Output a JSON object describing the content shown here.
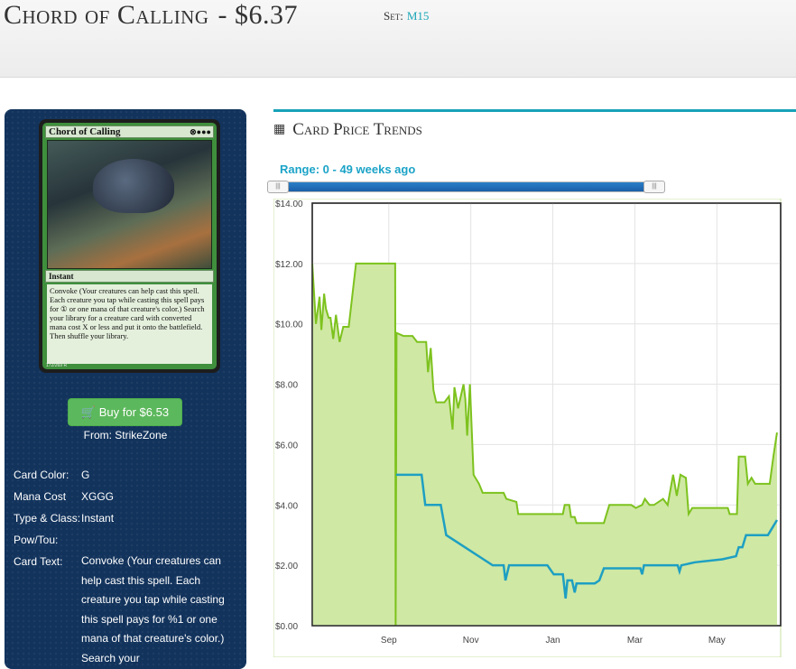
{
  "header": {
    "card_name": "Chord of Calling",
    "price": "- $6.37",
    "set_label": "Set:",
    "set_code": "M15"
  },
  "card": {
    "name": "Chord of Calling",
    "mana_symbols": "⊗●●●",
    "type": "Instant",
    "rules_text": "Convoke (Your creatures can help cast this spell. Each creature you tap while casting this spell pays for ① or one mana of that creature's color.) Search your library for a creature card with converted mana cost X or less and put it onto the battlefield. Then shuffle your library.",
    "footer": "172/269 R"
  },
  "buy": {
    "label": "Buy for $6.53",
    "from": "From: StrikeZone",
    "icon": "shopping-cart-icon"
  },
  "info": [
    {
      "key": "Card Color:",
      "value": "G"
    },
    {
      "key": "Mana Cost",
      "value": "XGGG"
    },
    {
      "key": "Type & Class:",
      "value": "Instant"
    },
    {
      "key": "Pow/Tou:",
      "value": ""
    },
    {
      "key": "Card Text:",
      "value": "Convoke (Your creatures can help cast this spell. Each creature you tap while casting this spell pays for %1 or one mana of that creature's color.) Search your"
    }
  ],
  "trends": {
    "title": "Card Price Trends",
    "icon": "calendar-icon",
    "range": "Range: 0 - 49 weeks ago",
    "range_start_weeks": 0,
    "range_end_weeks": 49
  },
  "colors": {
    "accent": "#17a2b8",
    "panel": "#12335c",
    "buy": "#5cb85c",
    "retail": "#7dc21e",
    "buylist": "#1e9fc2",
    "area": "#cfe8a4"
  },
  "chart_data": {
    "type": "line",
    "ylim": [
      0,
      14
    ],
    "yticks": [
      "$0.00",
      "$2.00",
      "$4.00",
      "$6.00",
      "$8.00",
      "$10.00",
      "$12.00",
      "$14.00"
    ],
    "xticks": [
      {
        "label": "Sep",
        "x": 8.4
      },
      {
        "label": "Nov",
        "x": 17.4
      },
      {
        "label": "Jan",
        "x": 26.4
      },
      {
        "label": "Mar",
        "x": 35.4
      },
      {
        "label": "May",
        "x": 44.4
      }
    ],
    "xlim": [
      0,
      51.4
    ],
    "grid": true,
    "series": [
      {
        "values": [
          [
            0,
            12
          ],
          [
            0.4,
            10
          ],
          [
            0.8,
            10.9
          ],
          [
            1.0,
            9.8
          ],
          [
            1.3,
            11
          ],
          [
            1.5,
            10.5
          ],
          [
            1.8,
            10.2
          ],
          [
            2.0,
            10.2
          ],
          [
            2.3,
            9.5
          ],
          [
            2.6,
            10.3
          ],
          [
            3.0,
            9.4
          ],
          [
            3.4,
            9.9
          ],
          [
            4.0,
            9.9
          ],
          [
            4.8,
            12
          ],
          [
            8.2,
            12
          ],
          [
            9.1,
            12
          ],
          [
            9.15,
            0
          ],
          [
            9.25,
            9.7
          ],
          [
            10,
            9.6
          ],
          [
            11,
            9.6
          ],
          [
            11.5,
            9.4
          ],
          [
            12.5,
            9.4
          ],
          [
            12.7,
            8.4
          ],
          [
            13,
            9.2
          ],
          [
            13.3,
            7.8
          ],
          [
            13.6,
            7.4
          ],
          [
            14.5,
            7.4
          ],
          [
            15,
            7.6
          ],
          [
            15.4,
            6.5
          ],
          [
            15.6,
            7.9
          ],
          [
            16,
            7.2
          ],
          [
            16.6,
            8
          ],
          [
            16.8,
            7.5
          ],
          [
            17.0,
            6.3
          ],
          [
            17.3,
            8
          ],
          [
            17.7,
            5
          ],
          [
            18.3,
            4.7
          ],
          [
            18.7,
            4.4
          ],
          [
            19.5,
            4.4
          ],
          [
            21,
            4.4
          ],
          [
            21.3,
            4.2
          ],
          [
            22.4,
            4.1
          ],
          [
            22.6,
            3.7
          ],
          [
            26,
            3.7
          ],
          [
            27.5,
            3.7
          ],
          [
            27.7,
            4
          ],
          [
            28.2,
            4
          ],
          [
            28.4,
            3.6
          ],
          [
            28.8,
            3.6
          ],
          [
            29,
            3.4
          ],
          [
            32.0,
            3.4
          ],
          [
            32.3,
            3.7
          ],
          [
            32.6,
            4
          ],
          [
            33,
            4
          ],
          [
            35,
            4
          ],
          [
            35.5,
            3.9
          ],
          [
            36.2,
            4
          ],
          [
            36.5,
            4.2
          ],
          [
            37,
            4
          ],
          [
            37.5,
            4
          ],
          [
            38.5,
            4.2
          ],
          [
            39,
            4
          ],
          [
            39.6,
            5
          ],
          [
            40,
            4.3
          ],
          [
            40.4,
            5
          ],
          [
            41,
            4.9
          ],
          [
            41.3,
            3.7
          ],
          [
            41.7,
            3.9
          ],
          [
            43,
            3.9
          ],
          [
            45.6,
            3.9
          ],
          [
            45.8,
            3.7
          ],
          [
            46.6,
            3.7
          ],
          [
            46.8,
            5.6
          ],
          [
            47.5,
            5.6
          ],
          [
            47.8,
            4.7
          ],
          [
            48.2,
            4.9
          ],
          [
            48.6,
            4.7
          ],
          [
            50.2,
            4.7
          ],
          [
            50.6,
            5.6
          ],
          [
            51.0,
            6.4
          ]
        ]
      },
      {
        "values": [
          [
            9.2,
            5
          ],
          [
            12.0,
            5
          ],
          [
            12.4,
            4
          ],
          [
            14.1,
            4
          ],
          [
            14.7,
            3
          ],
          [
            19.8,
            2
          ],
          [
            21,
            2
          ],
          [
            21.2,
            1.5
          ],
          [
            21.6,
            2
          ],
          [
            25.8,
            2
          ],
          [
            26.5,
            1.7
          ],
          [
            27.5,
            1.7
          ],
          [
            27.8,
            0.9
          ],
          [
            28.0,
            1.5
          ],
          [
            28.5,
            1.5
          ],
          [
            28.8,
            1.1
          ],
          [
            29,
            1.4
          ],
          [
            31,
            1.4
          ],
          [
            31.5,
            1.5
          ],
          [
            32.0,
            1.9
          ],
          [
            36.0,
            1.9
          ],
          [
            36.2,
            1.7
          ],
          [
            36.4,
            2
          ],
          [
            37,
            2
          ],
          [
            39.5,
            2
          ],
          [
            40.1,
            2.0
          ],
          [
            40.3,
            1.8
          ],
          [
            40.5,
            2.0
          ],
          [
            42,
            2.1
          ],
          [
            45,
            2.2
          ],
          [
            46.5,
            2.3
          ],
          [
            46.8,
            2.6
          ],
          [
            47.2,
            2.6
          ],
          [
            47.6,
            3
          ],
          [
            50,
            3
          ],
          [
            50.6,
            3.3
          ],
          [
            51.0,
            3.5
          ]
        ]
      }
    ]
  }
}
